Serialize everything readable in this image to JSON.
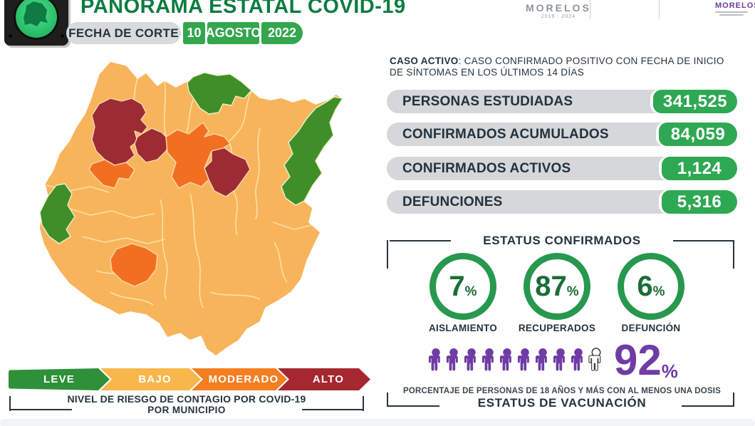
{
  "header": {
    "title": "PANORAMA ESTATAL COVID-19",
    "date_label": "FECHA DE CORTE",
    "date_day": "10",
    "date_month": "AGOSTO",
    "date_year": "2022",
    "gov_logo_text": "MORELOS",
    "gov_logo_years": "2019 - 2024",
    "right_logo_text": "MORELOS"
  },
  "caso_activo": {
    "term": "CASO ACTIVO",
    "definition": ": CASO CONFIRMADO POSITIVO CON FECHA DE INICIO DE SÍNTOMAS EN LOS ÚLTIMOS 14 DÍAS"
  },
  "stats": [
    {
      "label": "PERSONAS ESTUDIADAS",
      "value": "341,525"
    },
    {
      "label": "CONFIRMADOS ACUMULADOS",
      "value": "84,059"
    },
    {
      "label": "CONFIRMADOS ACTIVOS",
      "value": "1,124"
    },
    {
      "label": "DEFUNCIONES",
      "value": "5,316"
    }
  ],
  "estatus_confirmados": {
    "title": "ESTATUS CONFIRMADOS",
    "items": [
      {
        "percent": "7",
        "label": "AISLAMIENTO"
      },
      {
        "percent": "87",
        "label": "RECUPERADOS"
      },
      {
        "percent": "6",
        "label": "DEFUNCIÓN"
      }
    ]
  },
  "vacunacion": {
    "percent": "92",
    "filled_icons": 9,
    "total_icons": 10,
    "caption": "PORCENTAJE DE PERSONAS DE 18 AÑOS Y MÁS CON AL MENOS UNA DOSIS",
    "title": "ESTATUS DE VACUNACIÓN",
    "accent_color": "#6F3CA5"
  },
  "legend": {
    "levels": [
      {
        "label": "LEVE",
        "color": "#2E9139"
      },
      {
        "label": "BAJO",
        "color": "#F9B64B"
      },
      {
        "label": "MODERADO",
        "color": "#F57E20"
      },
      {
        "label": "ALTO",
        "color": "#A5272F"
      }
    ],
    "caption_prefix": "NIVEL DE RIESGO DE CONTAGIO POR ",
    "caption_bold": "COVID-19",
    "caption_line2": "POR MUNICIPIO"
  },
  "map": {
    "risk_colors": {
      "leve": "#3F8E27",
      "bajo": "#F8B45B",
      "moderado": "#F26F21",
      "alto": "#9C2B34"
    }
  },
  "ui": {
    "percent_sign": "%"
  },
  "chart_data": [
    {
      "type": "table",
      "title": "PANORAMA ESTATAL COVID-19 — FECHA DE CORTE 10 AGOSTO 2022",
      "categories": [
        "PERSONAS ESTUDIADAS",
        "CONFIRMADOS ACUMULADOS",
        "CONFIRMADOS ACTIVOS",
        "DEFUNCIONES"
      ],
      "values": [
        341525,
        84059,
        1124,
        5316
      ]
    },
    {
      "type": "pie",
      "title": "ESTATUS CONFIRMADOS",
      "categories": [
        "AISLAMIENTO",
        "RECUPERADOS",
        "DEFUNCIÓN"
      ],
      "values": [
        7,
        87,
        6
      ],
      "unit": "%"
    },
    {
      "type": "bar",
      "title": "ESTATUS DE VACUNACIÓN",
      "categories": [
        "PERSONAS DE 18 AÑOS Y MÁS CON AL MENOS UNA DOSIS"
      ],
      "values": [
        92
      ],
      "unit": "%",
      "note": "pictograma de 10 personas, 9 rellenas y 1 en contorno"
    },
    {
      "type": "heatmap",
      "title": "NIVEL DE RIESGO DE CONTAGIO POR COVID-19 POR MUNICIPIO",
      "categories": [
        "LEVE",
        "BAJO",
        "MODERADO",
        "ALTO"
      ],
      "colors": [
        "#2E9139",
        "#F9B64B",
        "#F57E20",
        "#A5272F"
      ],
      "note": "mapa coroplético del estado de Morelos; mayoría de municipios en BAJO (ámbar), franjas verdes al noreste y oeste, zonas ALTO (rojo oscuro) al norte-centro, zonas MODERADO (naranja) al centro y sur"
    }
  ]
}
